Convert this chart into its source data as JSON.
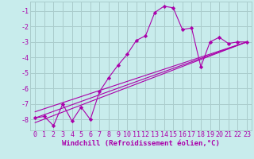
{
  "background_color": "#c8ecec",
  "grid_color": "#aacccc",
  "line_color": "#aa00aa",
  "xlabel": "Windchill (Refroidissement éolien,°C)",
  "xlabel_fontsize": 6.5,
  "tick_fontsize": 6.0,
  "xlim": [
    -0.5,
    23.5
  ],
  "ylim": [
    -8.7,
    -0.4
  ],
  "yticks": [
    -8,
    -7,
    -6,
    -5,
    -4,
    -3,
    -2,
    -1
  ],
  "xticks": [
    0,
    1,
    2,
    3,
    4,
    5,
    6,
    7,
    8,
    9,
    10,
    11,
    12,
    13,
    14,
    15,
    16,
    17,
    18,
    19,
    20,
    21,
    22,
    23
  ],
  "series1_x": [
    0,
    1,
    2,
    3,
    4,
    5,
    6,
    7,
    8,
    9,
    10,
    11,
    12,
    13,
    14,
    15,
    16,
    17,
    18,
    19,
    20,
    21,
    22,
    23
  ],
  "series1_y": [
    -7.9,
    -7.8,
    -8.4,
    -7.0,
    -8.1,
    -7.2,
    -8.0,
    -6.2,
    -5.3,
    -4.5,
    -3.8,
    -2.9,
    -2.6,
    -1.1,
    -0.7,
    -0.8,
    -2.2,
    -2.1,
    -4.6,
    -3.0,
    -2.7,
    -3.1,
    -3.0,
    -3.0
  ],
  "series2_x": [
    0,
    23
  ],
  "series2_y": [
    -7.9,
    -3.0
  ],
  "series3_x": [
    0,
    23
  ],
  "series3_y": [
    -7.5,
    -3.0
  ],
  "series4_x": [
    0,
    23
  ],
  "series4_y": [
    -8.2,
    -3.0
  ]
}
